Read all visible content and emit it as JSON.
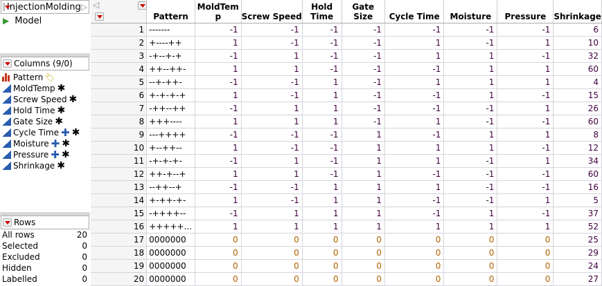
{
  "table_panel": {
    "title": "InjectionMolding",
    "scripts": [
      {
        "label": "Model"
      }
    ]
  },
  "columns_panel": {
    "title": "Columns (9/0)",
    "items": [
      {
        "name": "Pattern",
        "type": "nominal",
        "tags": [
          "label-tag"
        ]
      },
      {
        "name": "MoldTemp",
        "type": "continuous",
        "tags": [
          "asterisk"
        ]
      },
      {
        "name": "Screw Speed",
        "type": "continuous",
        "tags": [
          "asterisk"
        ]
      },
      {
        "name": "Hold Time",
        "type": "continuous",
        "tags": [
          "asterisk"
        ]
      },
      {
        "name": "Gate Size",
        "type": "continuous",
        "tags": [
          "asterisk"
        ]
      },
      {
        "name": "Cycle Time",
        "type": "continuous",
        "tags": [
          "plus",
          "asterisk"
        ]
      },
      {
        "name": "Moisture",
        "type": "continuous",
        "tags": [
          "plus",
          "asterisk"
        ]
      },
      {
        "name": "Pressure",
        "type": "continuous",
        "tags": [
          "plus",
          "asterisk"
        ]
      },
      {
        "name": "Shrinkage",
        "type": "continuous",
        "tags": [
          "asterisk"
        ]
      }
    ]
  },
  "rows_panel": {
    "title": "Rows",
    "items": [
      {
        "label": "All rows",
        "value": "20"
      },
      {
        "label": "Selected",
        "value": "0"
      },
      {
        "label": "Excluded",
        "value": "0"
      },
      {
        "label": "Hidden",
        "value": "0"
      },
      {
        "label": "Labelled",
        "value": "0"
      }
    ]
  },
  "grid": {
    "headers": [
      "Pattern",
      "MoldTem p",
      "Screw Speed",
      "Hold Time",
      "Gate Size",
      "Cycle Time",
      "Moisture",
      "Pressure",
      "Shrinkage"
    ],
    "rows": [
      [
        "1",
        "-------",
        "-1",
        "-1",
        "-1",
        "-1",
        "-1",
        "-1",
        "-1",
        "6"
      ],
      [
        "2",
        "+----++",
        "1",
        "-1",
        "-1",
        "-1",
        "1",
        "-1",
        "1",
        "10"
      ],
      [
        "3",
        "-+--+-+",
        "-1",
        "1",
        "-1",
        "-1",
        "1",
        "1",
        "-1",
        "32"
      ],
      [
        "4",
        "++--++-",
        "1",
        "1",
        "-1",
        "-1",
        "-1",
        "1",
        "1",
        "60"
      ],
      [
        "5",
        "--+-++-",
        "-1",
        "-1",
        "1",
        "-1",
        "1",
        "1",
        "1",
        "4"
      ],
      [
        "6",
        "+-+-+-+",
        "1",
        "-1",
        "1",
        "-1",
        "-1",
        "1",
        "-1",
        "15"
      ],
      [
        "7",
        "-++--++",
        "-1",
        "1",
        "1",
        "-1",
        "-1",
        "-1",
        "1",
        "26"
      ],
      [
        "8",
        "+++----",
        "1",
        "1",
        "1",
        "-1",
        "1",
        "-1",
        "-1",
        "60"
      ],
      [
        "9",
        "---++++",
        "-1",
        "-1",
        "-1",
        "1",
        "-1",
        "1",
        "1",
        "8"
      ],
      [
        "10",
        "+--++--",
        "1",
        "-1",
        "-1",
        "1",
        "1",
        "1",
        "-1",
        "12"
      ],
      [
        "11",
        "-+-+-+-",
        "-1",
        "1",
        "-1",
        "1",
        "1",
        "-1",
        "1",
        "34"
      ],
      [
        "12",
        "++-+--+",
        "1",
        "1",
        "-1",
        "1",
        "-1",
        "-1",
        "-1",
        "60"
      ],
      [
        "13",
        "--++--+",
        "-1",
        "-1",
        "1",
        "1",
        "1",
        "-1",
        "-1",
        "16"
      ],
      [
        "14",
        "+-++-+-",
        "1",
        "-1",
        "1",
        "1",
        "-1",
        "-1",
        "1",
        "5"
      ],
      [
        "15",
        "-++++--",
        "-1",
        "1",
        "1",
        "1",
        "-1",
        "1",
        "-1",
        "37"
      ],
      [
        "16",
        "+++++...",
        "1",
        "1",
        "1",
        "1",
        "1",
        "1",
        "1",
        "52"
      ],
      [
        "17",
        "0000000",
        "0",
        "0",
        "0",
        "0",
        "0",
        "0",
        "0",
        "25"
      ],
      [
        "18",
        "0000000",
        "0",
        "0",
        "0",
        "0",
        "0",
        "0",
        "0",
        "29"
      ],
      [
        "19",
        "0000000",
        "0",
        "0",
        "0",
        "0",
        "0",
        "0",
        "0",
        "24"
      ],
      [
        "20",
        "0000000",
        "0",
        "0",
        "0",
        "0",
        "0",
        "0",
        "0",
        "27"
      ]
    ]
  }
}
